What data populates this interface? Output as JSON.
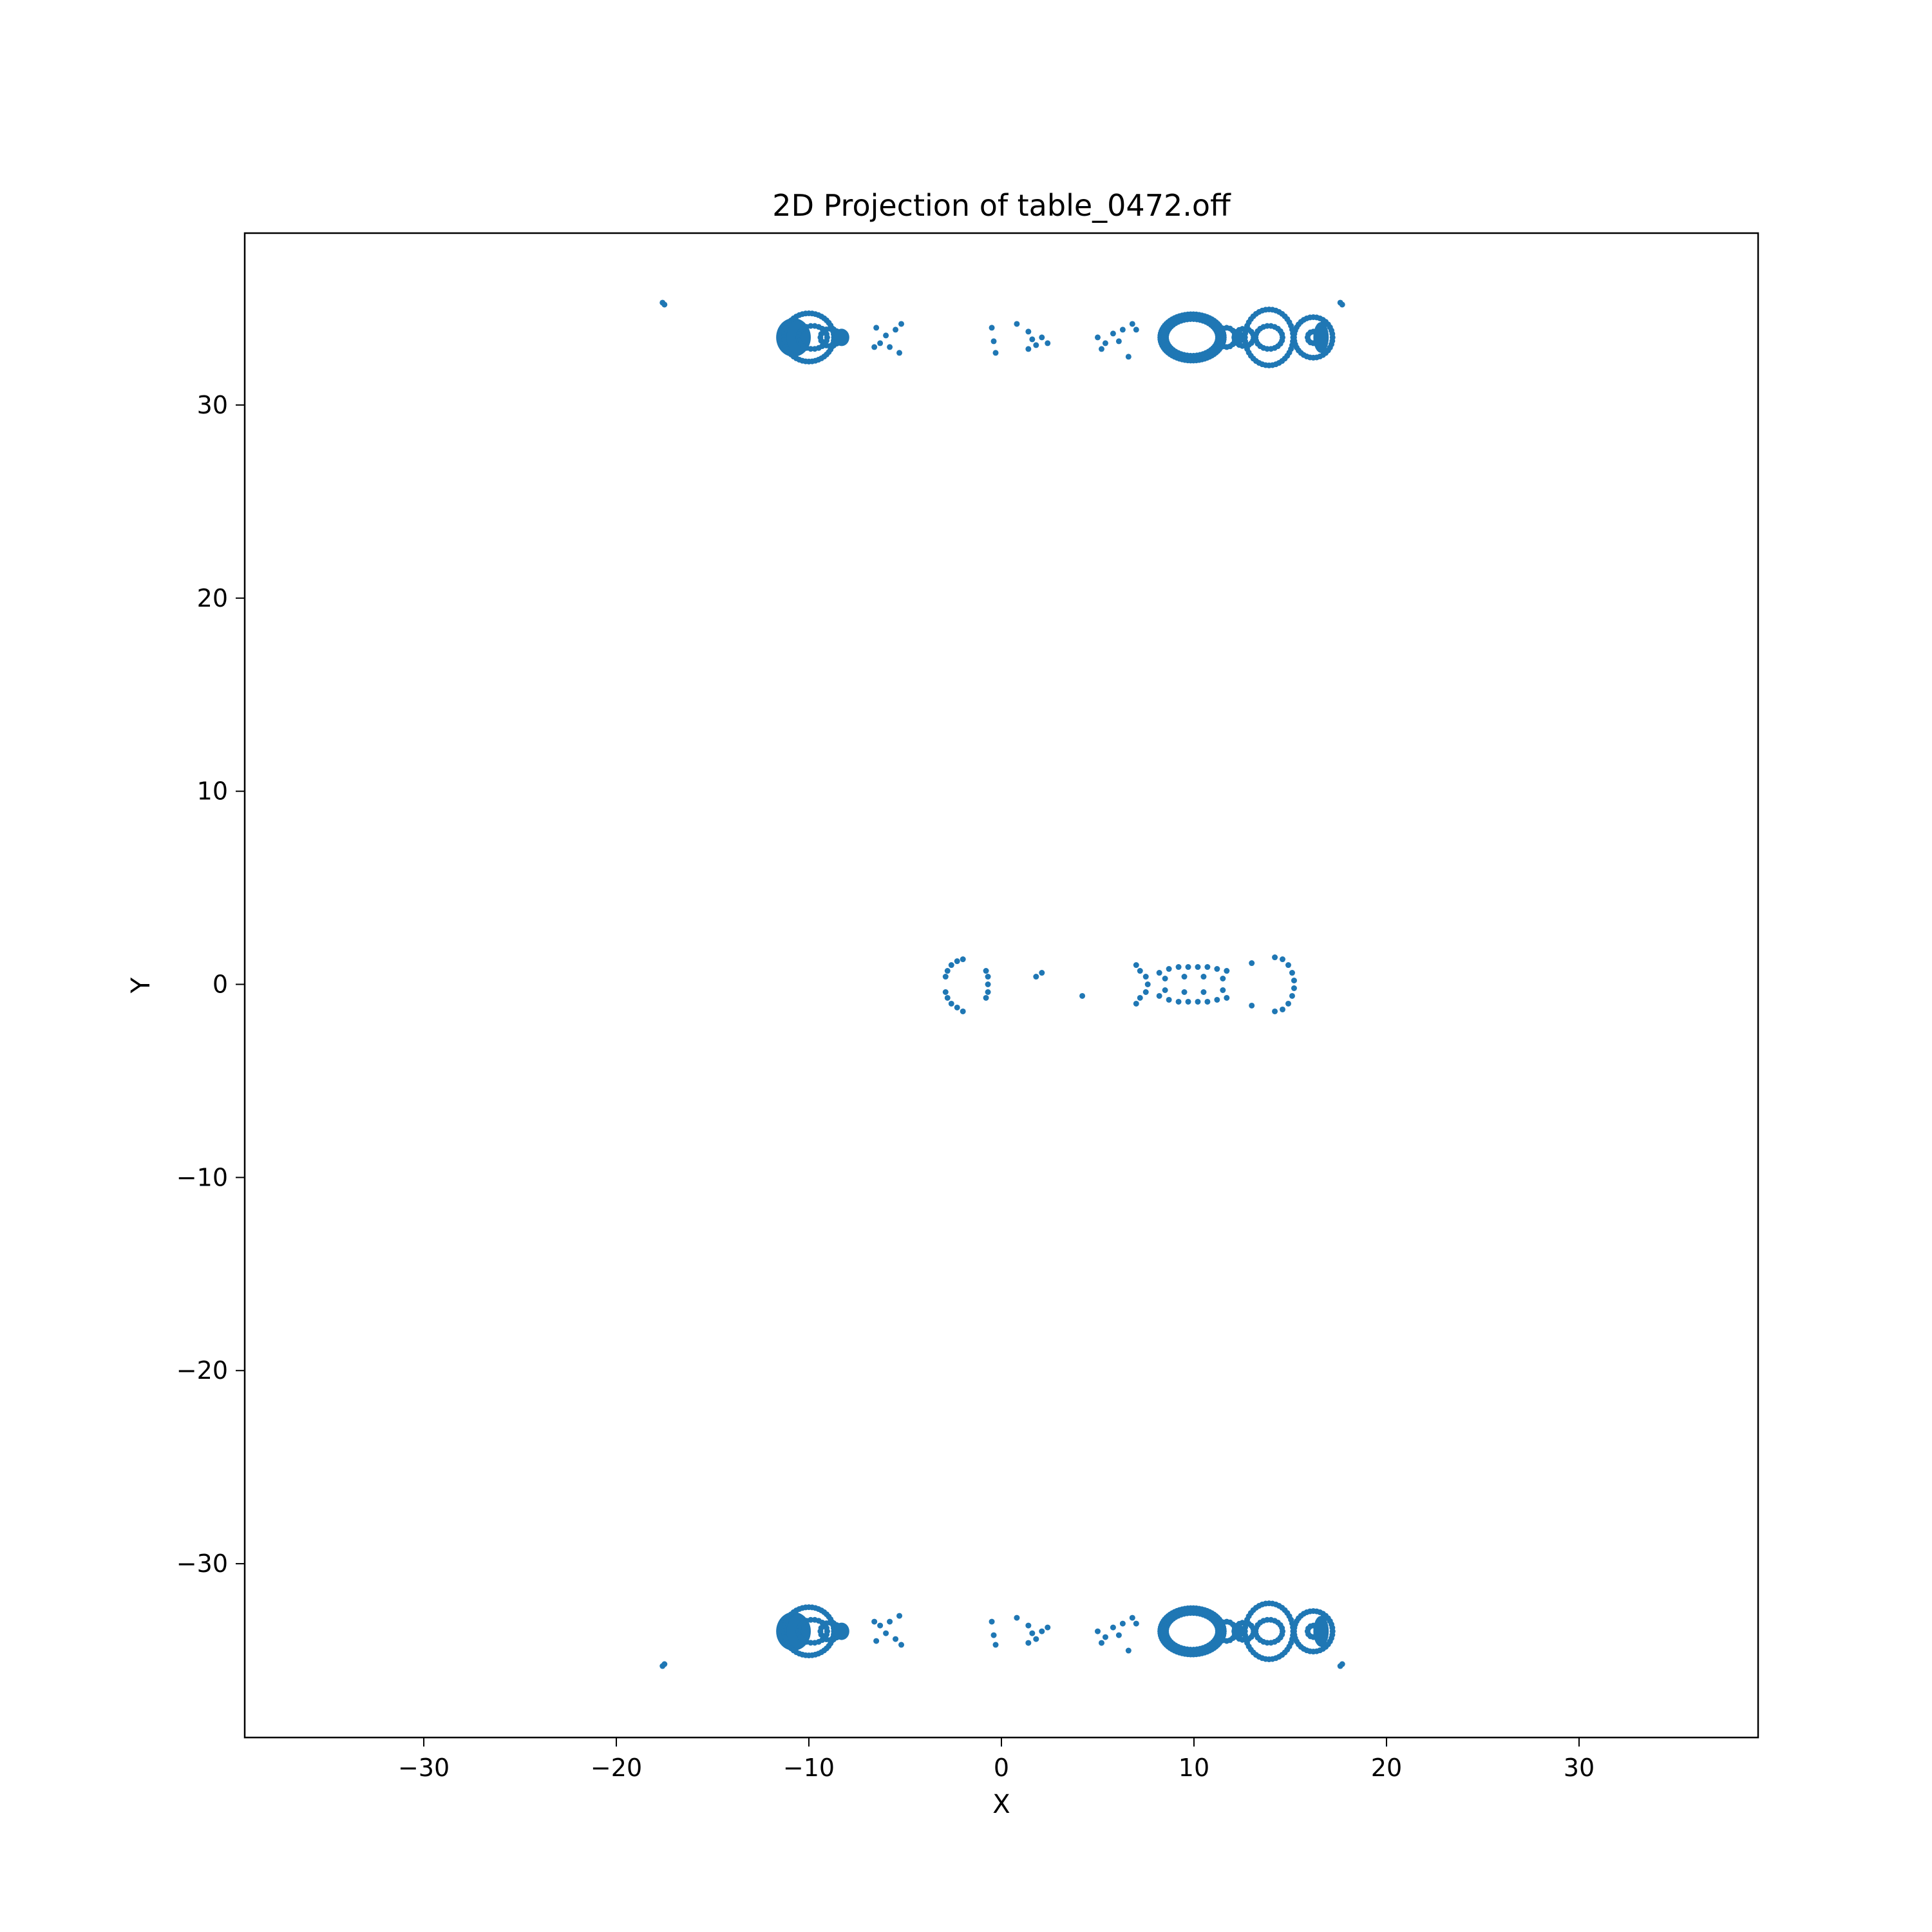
{
  "chart_data": {
    "type": "scatter",
    "title": "2D Projection of table_0472.off",
    "xlabel": "X",
    "ylabel": "Y",
    "xlim": [
      -39.3,
      39.3
    ],
    "ylim": [
      -39.0,
      38.9
    ],
    "xticks": [
      -30,
      -20,
      -10,
      0,
      10,
      20,
      30
    ],
    "yticks": [
      -30,
      -20,
      -10,
      0,
      10,
      20,
      30
    ],
    "xtick_labels": [
      "−30",
      "−20",
      "−10",
      "0",
      "10",
      "20",
      "30"
    ],
    "ytick_labels": [
      "−30",
      "−20",
      "−10",
      "0",
      "10",
      "20",
      "30"
    ],
    "grid": false,
    "legend": "none",
    "series": [
      {
        "color": "#1f77b4",
        "points": [
          [
            -17.6,
            35.3
          ],
          [
            -17.5,
            35.2
          ],
          [
            17.6,
            35.3
          ],
          [
            17.7,
            35.2
          ],
          [
            -17.6,
            -35.3
          ],
          [
            -17.5,
            -35.2
          ],
          [
            17.6,
            -35.3
          ],
          [
            17.7,
            -35.2
          ],
          [
            -6.5,
            34.0
          ],
          [
            -6.0,
            33.6
          ],
          [
            -5.5,
            33.9
          ],
          [
            -5.2,
            34.2
          ],
          [
            -6.3,
            33.2
          ],
          [
            -5.8,
            33.0
          ],
          [
            -5.3,
            32.7
          ],
          [
            -6.6,
            33.0
          ],
          [
            -0.5,
            34.0
          ],
          [
            -0.4,
            33.3
          ],
          [
            -0.3,
            32.7
          ],
          [
            0.8,
            34.2
          ],
          [
            1.4,
            33.8
          ],
          [
            1.6,
            33.4
          ],
          [
            1.8,
            33.1
          ],
          [
            2.1,
            33.5
          ],
          [
            2.4,
            33.2
          ],
          [
            1.4,
            32.9
          ],
          [
            5.0,
            33.5
          ],
          [
            5.4,
            33.2
          ],
          [
            5.8,
            33.7
          ],
          [
            6.3,
            33.9
          ],
          [
            6.8,
            34.2
          ],
          [
            5.2,
            32.9
          ],
          [
            6.1,
            33.3
          ],
          [
            6.6,
            32.5
          ],
          [
            7.0,
            33.9
          ],
          [
            -6.5,
            -34.0
          ],
          [
            -6.0,
            -33.6
          ],
          [
            -5.5,
            -33.9
          ],
          [
            -5.2,
            -34.2
          ],
          [
            -6.3,
            -33.2
          ],
          [
            -5.8,
            -33.0
          ],
          [
            -5.3,
            -32.7
          ],
          [
            -6.6,
            -33.0
          ],
          [
            -0.5,
            -33.0
          ],
          [
            -0.4,
            -33.7
          ],
          [
            -0.3,
            -34.2
          ],
          [
            0.8,
            -32.8
          ],
          [
            1.4,
            -33.2
          ],
          [
            1.6,
            -33.6
          ],
          [
            1.8,
            -33.9
          ],
          [
            2.1,
            -33.5
          ],
          [
            2.4,
            -33.3
          ],
          [
            1.4,
            -34.1
          ],
          [
            5.0,
            -33.5
          ],
          [
            5.4,
            -33.8
          ],
          [
            5.8,
            -33.3
          ],
          [
            6.3,
            -33.1
          ],
          [
            6.8,
            -32.8
          ],
          [
            5.2,
            -34.1
          ],
          [
            6.1,
            -33.7
          ],
          [
            6.6,
            -34.5
          ],
          [
            7.0,
            -33.1
          ],
          [
            -2.9,
            0.4
          ],
          [
            -2.9,
            -0.4
          ],
          [
            -2.8,
            0.7
          ],
          [
            -2.8,
            -0.7
          ],
          [
            -2.6,
            1.0
          ],
          [
            -2.6,
            -1.0
          ],
          [
            -2.3,
            1.2
          ],
          [
            -2.3,
            -1.2
          ],
          [
            -2.0,
            1.3
          ],
          [
            -2.0,
            -1.4
          ],
          [
            -0.8,
            0.7
          ],
          [
            -0.7,
            0.4
          ],
          [
            -0.7,
            0.0
          ],
          [
            -0.7,
            -0.4
          ],
          [
            -0.8,
            -0.7
          ],
          [
            1.8,
            0.4
          ],
          [
            2.1,
            0.6
          ],
          [
            4.2,
            -0.6
          ],
          [
            7.0,
            1.0
          ],
          [
            7.2,
            0.7
          ],
          [
            7.5,
            0.4
          ],
          [
            7.6,
            0.0
          ],
          [
            7.5,
            -0.4
          ],
          [
            7.2,
            -0.7
          ],
          [
            7.0,
            -1.0
          ],
          [
            8.2,
            0.6
          ],
          [
            8.7,
            0.8
          ],
          [
            9.2,
            0.9
          ],
          [
            9.7,
            0.9
          ],
          [
            10.2,
            0.9
          ],
          [
            10.7,
            0.9
          ],
          [
            11.2,
            0.8
          ],
          [
            11.7,
            0.7
          ],
          [
            8.2,
            -0.6
          ],
          [
            8.7,
            -0.8
          ],
          [
            9.2,
            -0.9
          ],
          [
            9.7,
            -0.9
          ],
          [
            10.2,
            -0.9
          ],
          [
            10.7,
            -0.9
          ],
          [
            11.2,
            -0.8
          ],
          [
            11.7,
            -0.7
          ],
          [
            8.5,
            0.3
          ],
          [
            9.5,
            0.4
          ],
          [
            10.5,
            0.4
          ],
          [
            11.5,
            0.3
          ],
          [
            8.5,
            -0.3
          ],
          [
            9.5,
            -0.4
          ],
          [
            10.5,
            -0.4
          ],
          [
            11.5,
            -0.3
          ],
          [
            13.0,
            1.1
          ],
          [
            14.2,
            1.4
          ],
          [
            14.6,
            1.3
          ],
          [
            14.9,
            1.0
          ],
          [
            15.1,
            0.6
          ],
          [
            15.2,
            0.2
          ],
          [
            15.2,
            -0.2
          ],
          [
            15.1,
            -0.6
          ],
          [
            14.9,
            -1.0
          ],
          [
            14.6,
            -1.3
          ],
          [
            14.2,
            -1.4
          ],
          [
            13.0,
            -1.1
          ]
        ]
      }
    ]
  }
}
